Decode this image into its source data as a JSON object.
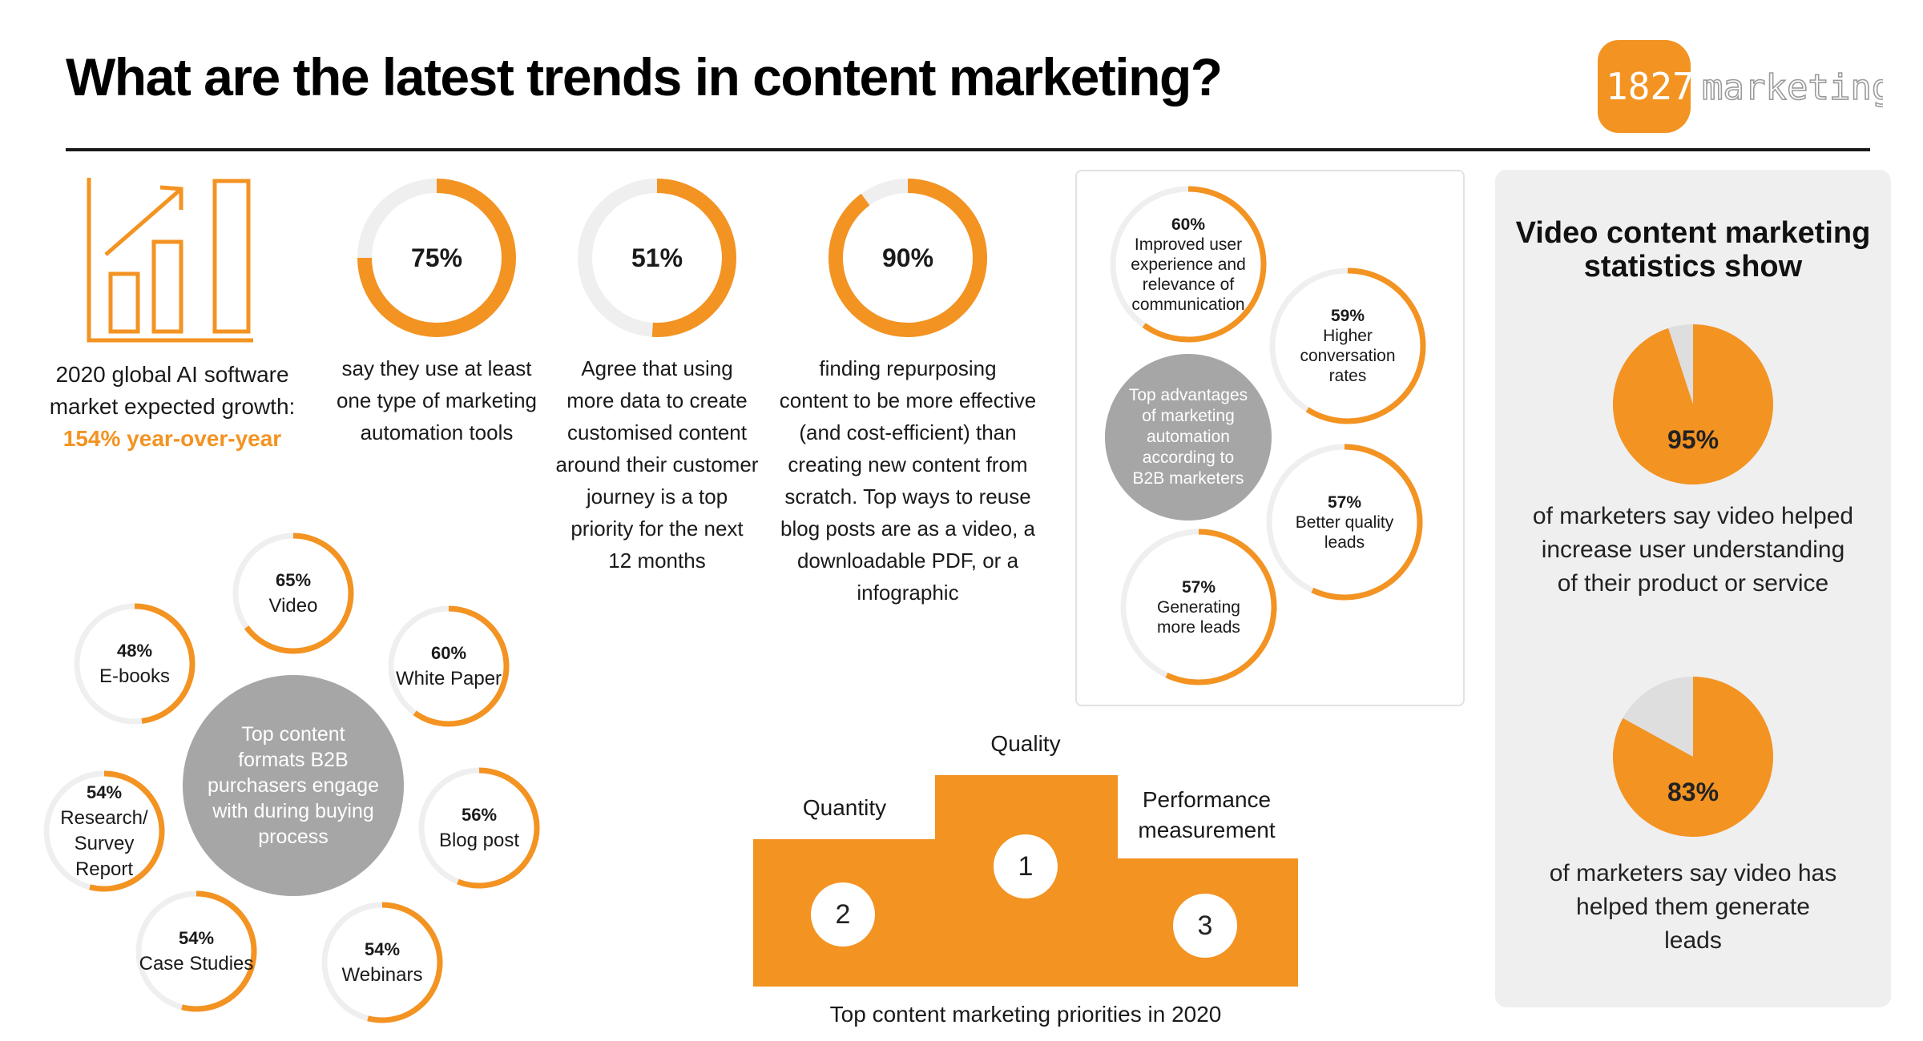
{
  "title": "What are the latest trends in content marketing?",
  "logo": {
    "number": "1827",
    "word": "marketing"
  },
  "colors": {
    "accent": "#f39322",
    "track": "#efefef",
    "hub": "#a6a6a6",
    "panel": "#efefef",
    "pie_rest": "#dedede"
  },
  "ai_stat": {
    "icon": "bar-chart-growth-icon",
    "line1": "2020 global AI software",
    "line2": "market  expected growth:",
    "highlight": "154% year-over-year"
  },
  "top_stats": [
    {
      "value": 75,
      "label": "75%",
      "caption": [
        "say they use at least",
        "one type of marketing",
        "automation tools"
      ]
    },
    {
      "value": 51,
      "label": "51%",
      "caption": [
        "Agree that using",
        "more data to create",
        "customised content",
        "around their customer",
        "journey is a top",
        "priority for the next",
        "12 months"
      ]
    },
    {
      "value": 90,
      "label": "90%",
      "caption": [
        "finding repurposing",
        "content to be more effective",
        "(and cost-efficient) than",
        "creating new content from",
        "scratch. Top ways to reuse",
        "blog posts are as  a video, a",
        "downloadable PDF, or a",
        "infographic"
      ]
    }
  ],
  "formats": {
    "hub_text": [
      "Top content",
      "formats B2B",
      "purchasers engage",
      "with during buying",
      "process"
    ],
    "items": [
      {
        "value": 65,
        "label": "65%",
        "name": [
          "Video"
        ]
      },
      {
        "value": 60,
        "label": "60%",
        "name": [
          "White Paper"
        ]
      },
      {
        "value": 56,
        "label": "56%",
        "name": [
          "Blog post"
        ]
      },
      {
        "value": 54,
        "label": "54%",
        "name": [
          "Webinars"
        ]
      },
      {
        "value": 54,
        "label": "54%",
        "name": [
          "Case Studies"
        ]
      },
      {
        "value": 54,
        "label": "54%",
        "name": [
          "Research/",
          "Survey",
          "Report"
        ]
      },
      {
        "value": 48,
        "label": "48%",
        "name": [
          "E-books"
        ]
      }
    ]
  },
  "advantages": {
    "hub_text": [
      "Top advantages",
      "of  marketing",
      "automation",
      "according to",
      "B2B marketers"
    ],
    "items": [
      {
        "value": 60,
        "label": "60%",
        "name": [
          "Improved user",
          "experience and",
          "relevance of",
          "communication"
        ]
      },
      {
        "value": 59,
        "label": "59%",
        "name": [
          "Higher",
          "conversation",
          "rates"
        ]
      },
      {
        "value": 57,
        "label": "57%",
        "name": [
          "Better quality",
          "leads"
        ]
      },
      {
        "value": 57,
        "label": "57%",
        "name": [
          "Generating",
          "more leads"
        ]
      }
    ]
  },
  "priorities": {
    "caption": "Top content marketing priorities in 2020",
    "places": [
      {
        "rank": "1",
        "label": [
          "Quality"
        ]
      },
      {
        "rank": "2",
        "label": [
          "Quantity"
        ]
      },
      {
        "rank": "3",
        "label": [
          "Performance",
          "measurement"
        ]
      }
    ]
  },
  "video": {
    "title": [
      "Video content marketing",
      "statistics show"
    ],
    "stats": [
      {
        "value": 95,
        "label": "95%",
        "caption": [
          "of marketers say video helped",
          "increase user understanding",
          "of their product or service"
        ]
      },
      {
        "value": 83,
        "label": "83%",
        "caption": [
          "of marketers say video has",
          "helped them generate",
          "leads"
        ]
      }
    ]
  },
  "chart_data": [
    {
      "type": "pie",
      "title": "",
      "categories": [
        "use marketing automation tools",
        "other"
      ],
      "values": [
        75,
        25
      ]
    },
    {
      "type": "pie",
      "title": "",
      "categories": [
        "data-driven customised content is a top priority",
        "other"
      ],
      "values": [
        51,
        49
      ]
    },
    {
      "type": "pie",
      "title": "",
      "categories": [
        "repurposing content more effective",
        "other"
      ],
      "values": [
        90,
        10
      ]
    },
    {
      "type": "bar",
      "title": "Top content formats B2B purchasers engage with during buying process",
      "categories": [
        "Video",
        "White Paper",
        "Blog post",
        "Webinars",
        "Case Studies",
        "Research/ Survey Report",
        "E-books"
      ],
      "values": [
        65,
        60,
        56,
        54,
        54,
        54,
        48
      ]
    },
    {
      "type": "bar",
      "title": "Top advantages of marketing automation according to B2B marketers",
      "categories": [
        "Improved user experience and relevance of communication",
        "Higher conversation rates",
        "Better quality leads",
        "Generating more leads"
      ],
      "values": [
        60,
        59,
        57,
        57
      ]
    },
    {
      "type": "pie",
      "title": "",
      "categories": [
        "video helped increase user understanding",
        "other"
      ],
      "values": [
        95,
        5
      ]
    },
    {
      "type": "pie",
      "title": "",
      "categories": [
        "video helped generate leads",
        "other"
      ],
      "values": [
        83,
        17
      ]
    }
  ]
}
